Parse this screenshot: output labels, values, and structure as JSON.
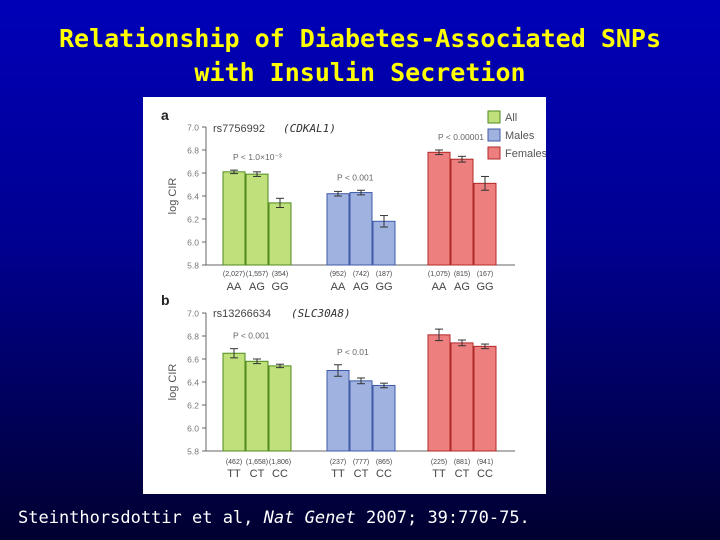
{
  "slide": {
    "title_line1": "Relationship of Diabetes-Associated SNPs",
    "title_line2": "with Insulin Secretion",
    "citation_pre": "Steinthorsdottir et al,",
    "citation_journal": "Nat Genet",
    "citation_post": "2007; 39:770-75."
  },
  "colors": {
    "all": "#bfe07a",
    "all_stroke": "#4f8a1e",
    "males": "#9fb2e0",
    "males_stroke": "#3f5aa8",
    "females": "#ee7f7f",
    "females_stroke": "#b02828"
  },
  "chart_data": [
    {
      "type": "bar",
      "panel_label": "a",
      "snp": "rs7756992",
      "gene": "(CDKAL1)",
      "ylabel": "log CIR",
      "ylim": [
        5.8,
        7.0
      ],
      "yticks": [
        "7.0",
        "6.8",
        "6.6",
        "6.4",
        "6.2",
        "6.0",
        "5.8"
      ],
      "legend": [
        "All",
        "Males",
        "Females"
      ],
      "legend_position": "top-right",
      "groups": [
        {
          "name": "All",
          "genotypes": [
            "AA",
            "AG",
            "GG"
          ],
          "values": [
            6.61,
            6.59,
            6.34
          ],
          "errors": [
            0.015,
            0.02,
            0.04
          ],
          "counts": [
            "(2,027)",
            "(1,557)",
            "(354)"
          ],
          "p_label": "P < 1.0×10⁻³"
        },
        {
          "name": "Males",
          "genotypes": [
            "AA",
            "AG",
            "GG"
          ],
          "values": [
            6.42,
            6.43,
            6.18
          ],
          "errors": [
            0.02,
            0.02,
            0.05
          ],
          "counts": [
            "(952)",
            "(742)",
            "(187)"
          ],
          "p_label": "P < 0.001"
        },
        {
          "name": "Females",
          "genotypes": [
            "AA",
            "AG",
            "GG"
          ],
          "values": [
            6.78,
            6.72,
            6.51
          ],
          "errors": [
            0.02,
            0.025,
            0.06
          ],
          "counts": [
            "(1,075)",
            "(815)",
            "(167)"
          ],
          "p_label": "P < 0.00001"
        }
      ]
    },
    {
      "type": "bar",
      "panel_label": "b",
      "snp": "rs13266634",
      "gene": "(SLC30A8)",
      "ylabel": "log CIR",
      "ylim": [
        5.8,
        7.0
      ],
      "yticks": [
        "7.0",
        "6.8",
        "6.6",
        "6.4",
        "6.2",
        "6.0",
        "5.8"
      ],
      "groups": [
        {
          "name": "All",
          "genotypes": [
            "TT",
            "CT",
            "CC"
          ],
          "values": [
            6.65,
            6.58,
            6.54
          ],
          "errors": [
            0.04,
            0.02,
            0.015
          ],
          "counts": [
            "(462)",
            "(1,658)",
            "(1,806)"
          ],
          "p_label": "P < 0.001"
        },
        {
          "name": "Males",
          "genotypes": [
            "TT",
            "CT",
            "CC"
          ],
          "values": [
            6.5,
            6.41,
            6.37
          ],
          "errors": [
            0.05,
            0.025,
            0.02
          ],
          "counts": [
            "(237)",
            "(777)",
            "(865)"
          ],
          "p_label": "P < 0.01"
        },
        {
          "name": "Females",
          "genotypes": [
            "TT",
            "CT",
            "CC"
          ],
          "values": [
            6.81,
            6.74,
            6.71
          ],
          "errors": [
            0.05,
            0.025,
            0.02
          ],
          "counts": [
            "(225)",
            "(881)",
            "(941)"
          ],
          "p_label": ""
        }
      ]
    }
  ]
}
